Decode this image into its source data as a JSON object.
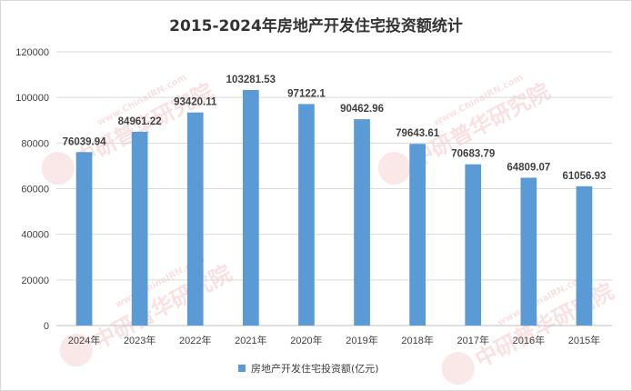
{
  "chart_data": {
    "type": "bar",
    "title": "2015-2024年房地产开发住宅投资额统计",
    "categories": [
      "2024年",
      "2023年",
      "2022年",
      "2021年",
      "2020年",
      "2019年",
      "2018年",
      "2017年",
      "2016年",
      "2015年"
    ],
    "series": [
      {
        "name": "房地产开发住宅投资额(亿元)",
        "values": [
          76039.94,
          84961.22,
          93420.11,
          103281.53,
          97122.1,
          90462.96,
          79643.61,
          70683.79,
          64809.07,
          61056.93
        ],
        "labels": [
          "76039.94",
          "84961.22",
          "93420.11",
          "103281.53",
          "97122.1",
          "90462.96",
          "79643.61",
          "70683.79",
          "64809.07",
          "61056.93"
        ]
      }
    ],
    "ylim": [
      0,
      120000
    ],
    "yticks": [
      "0",
      "20000",
      "40000",
      "60000",
      "80000",
      "100000",
      "120000"
    ],
    "grid": true,
    "legend_position": "bottom",
    "colors": {
      "bar": "#5b9bd5",
      "grid": "#d9d9d9",
      "axis": "#bfbfbf"
    }
  },
  "watermarks": [
    {
      "url": "www.ChinaIRN.com",
      "name": "中研普华研究院"
    },
    {
      "url": "www.ChinaIRN.com",
      "name": "中研普华研究院"
    },
    {
      "url": "www.ChinaIRN.com",
      "name": "中研普华研究院"
    },
    {
      "url": "www.ChinaIRN.com",
      "name": "中研普华研究院"
    }
  ]
}
